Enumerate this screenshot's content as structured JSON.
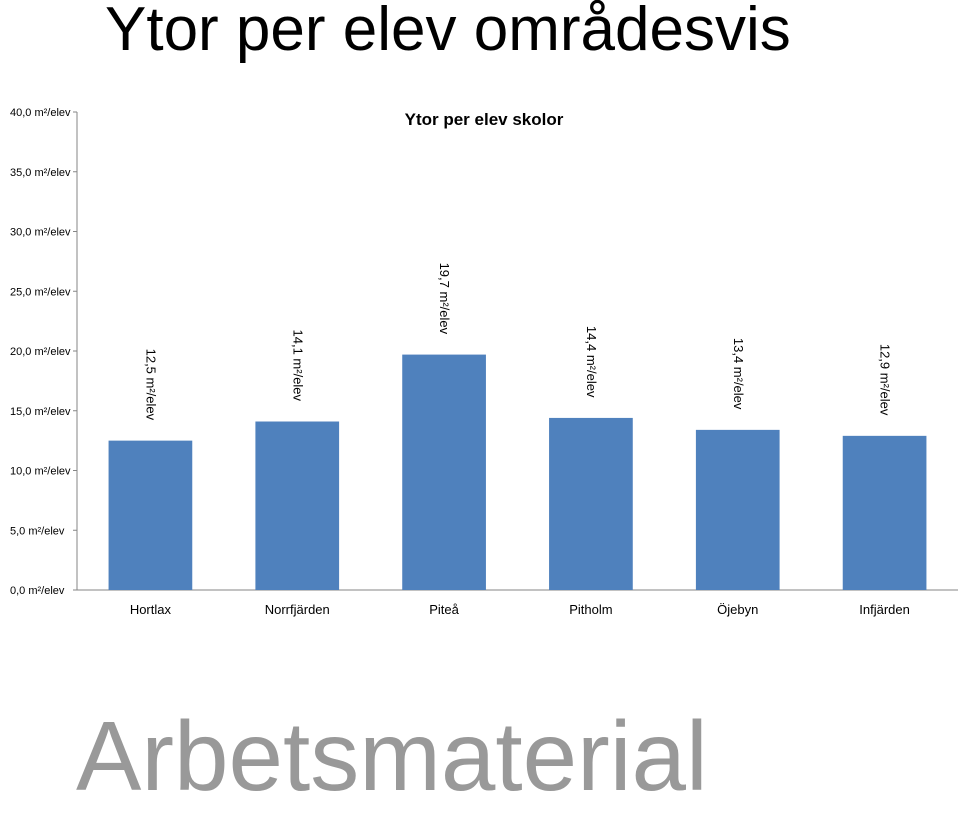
{
  "slide": {
    "title": "Ytor per elev områdesvis",
    "watermark": "Arbetsmaterial"
  },
  "chart_data": {
    "type": "bar",
    "title": "Ytor per elev  skolor",
    "xlabel": "",
    "ylabel": "",
    "categories": [
      "Hortlax",
      "Norrfjärden",
      "Piteå",
      "Pitholm",
      "Öjebyn",
      "Infjärden"
    ],
    "values": [
      12.5,
      14.1,
      19.7,
      14.4,
      13.4,
      12.9
    ],
    "data_labels": [
      "12,5 m²/elev",
      "14,1 m²/elev",
      "19,7 m²/elev",
      "14,4 m²/elev",
      "13,4 m²/elev",
      "12,9 m²/elev"
    ],
    "ylim": [
      0,
      40
    ],
    "y_ticks": [
      {
        "value": 0,
        "label": "0,0 m²/elev"
      },
      {
        "value": 5,
        "label": "5,0 m²/elev"
      },
      {
        "value": 10,
        "label": "10,0 m²/elev"
      },
      {
        "value": 15,
        "label": "15,0 m²/elev"
      },
      {
        "value": 20,
        "label": "20,0 m²/elev"
      },
      {
        "value": 25,
        "label": "25,0 m²/elev"
      },
      {
        "value": 30,
        "label": "30,0 m²/elev"
      },
      {
        "value": 35,
        "label": "35,0 m²/elev"
      },
      {
        "value": 40,
        "label": "40,0 m²/elev"
      }
    ],
    "bar_color": "#4F81BD",
    "grid": false,
    "legend": "none"
  }
}
